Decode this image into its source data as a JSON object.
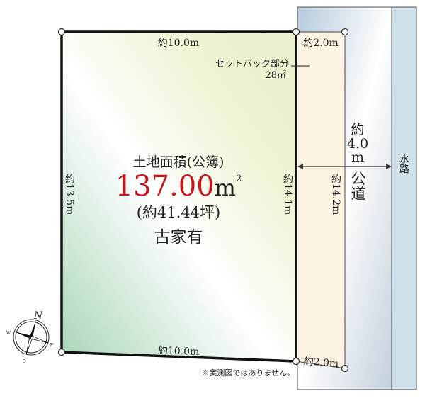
{
  "lot": {
    "title": "土地面積(公簿)",
    "area": "137.00",
    "area_unit": "m",
    "area_sup": "2",
    "tsubo": "(約41.44坪)",
    "note": "古家有",
    "top_side": "約10.0m",
    "bottom_side": "約10.0m",
    "left_side": "約13.5m",
    "right_side": "約14.1m"
  },
  "setback": {
    "label": "セットバック部分",
    "area": "28㎡",
    "top_width": "約2.0m",
    "bottom_width": "約2.0m",
    "length": "約14.2m"
  },
  "road": {
    "width_prefix": "約",
    "width_value": "4.0",
    "width_unit": "m",
    "type": "公道"
  },
  "waterway": {
    "label": "水路"
  },
  "compass": {
    "n": "N",
    "e": "E",
    "s": "S",
    "w": "W"
  },
  "disclaimer": "※実測図ではありません。",
  "colors": {
    "lot_green": "#b9dcc0",
    "lot_yellow": "#eef3d2",
    "setback": "#fdf3e3",
    "road": "#b4c9d9",
    "waterway": "#cfe0ea",
    "area_red": "#c4161c"
  }
}
